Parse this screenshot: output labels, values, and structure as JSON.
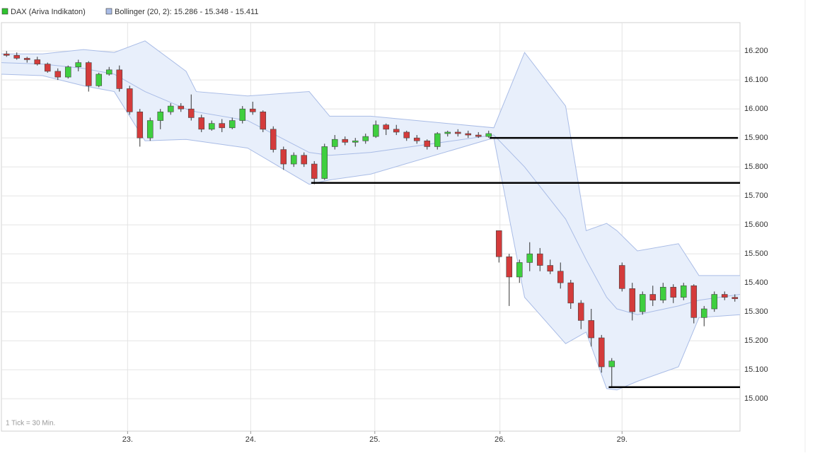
{
  "chart_data": {
    "type": "candlestick",
    "legend": [
      {
        "name": "DAX (Ariva Indikaton)",
        "color": "#2fc42f"
      },
      {
        "name": "Bollinger (20, 2): 15.286 - 15.348 - 15.411",
        "color": "#a9bce6"
      }
    ],
    "footnote": "1 Tick = 30 Min.",
    "up_color": "#3fcf3f",
    "down_color": "#d43b3b",
    "band_color": "#a9bce6",
    "band_fill": "#e8effb",
    "grid": true,
    "xlim": [
      0,
      72
    ],
    "xticks": [
      {
        "value": 12.3,
        "label": "23."
      },
      {
        "value": 24.3,
        "label": "24."
      },
      {
        "value": 36.4,
        "label": "25."
      },
      {
        "value": 48.6,
        "label": "26."
      },
      {
        "value": 60.5,
        "label": "29."
      }
    ],
    "ylim": [
      14888,
      16298
    ],
    "yticks": [
      {
        "value": 16200,
        "label": "16.200"
      },
      {
        "value": 16100,
        "label": "16.100"
      },
      {
        "value": 16000,
        "label": "16.000"
      },
      {
        "value": 15900,
        "label": "15.900"
      },
      {
        "value": 15800,
        "label": "15.800"
      },
      {
        "value": 15700,
        "label": "15.700"
      },
      {
        "value": 15600,
        "label": "15.600"
      },
      {
        "value": 15500,
        "label": "15.500"
      },
      {
        "value": 15400,
        "label": "15.400"
      },
      {
        "value": 15300,
        "label": "15.300"
      },
      {
        "value": 15200,
        "label": "15.200"
      },
      {
        "value": 15100,
        "label": "15.100"
      },
      {
        "value": 15000,
        "label": "15.000"
      }
    ],
    "open": [
      16190,
      16185,
      16175,
      16170,
      16155,
      16130,
      16110,
      16145,
      16160,
      16080,
      16120,
      16135,
      16070,
      15990,
      15900,
      15960,
      15990,
      16010,
      16000,
      15970,
      15930,
      15950,
      15935,
      15960,
      16000,
      15990,
      15930,
      15860,
      15810,
      15840,
      15810,
      15760,
      15870,
      15895,
      15885,
      15890,
      15905,
      15945,
      15930,
      15920,
      15900,
      15890,
      15870,
      15915,
      15920,
      15915,
      15910,
      15905,
      15580,
      15490,
      15420,
      15470,
      15500,
      15460,
      15440,
      15400,
      15330,
      15270,
      15210,
      15110,
      15460,
      15380,
      15300,
      15360,
      15340,
      15385,
      15350,
      15390,
      15280,
      15310,
      15360,
      15350
    ],
    "high": [
      16200,
      16195,
      16180,
      16180,
      16160,
      16140,
      16150,
      16170,
      16165,
      16125,
      16145,
      16150,
      16080,
      16000,
      15970,
      16000,
      16020,
      16020,
      16050,
      15980,
      15960,
      15965,
      15970,
      16010,
      16025,
      15995,
      15940,
      15870,
      15850,
      15850,
      15820,
      15880,
      15910,
      15905,
      15900,
      15915,
      15960,
      15950,
      15945,
      15925,
      15910,
      15895,
      15920,
      15925,
      15930,
      15925,
      15920,
      15925,
      15580,
      15500,
      15480,
      15540,
      15520,
      15480,
      15470,
      15410,
      15340,
      15310,
      15220,
      15140,
      15470,
      15400,
      15370,
      15390,
      15400,
      15395,
      15400,
      15395,
      15320,
      15370,
      15370,
      15360
    ],
    "low": [
      16180,
      16170,
      16160,
      16150,
      16125,
      16100,
      16105,
      16130,
      16060,
      16075,
      16115,
      16060,
      15980,
      15870,
      15890,
      15930,
      15980,
      15990,
      15960,
      15920,
      15925,
      15920,
      15930,
      15950,
      15980,
      15920,
      15850,
      15790,
      15800,
      15800,
      15740,
      15755,
      15860,
      15875,
      15870,
      15880,
      15900,
      15910,
      15910,
      15890,
      15880,
      15860,
      15860,
      15905,
      15905,
      15900,
      15900,
      15900,
      15470,
      15320,
      15400,
      15440,
      15440,
      15430,
      15380,
      15310,
      15240,
      15180,
      15090,
      15040,
      15370,
      15270,
      15290,
      15320,
      15330,
      15330,
      15340,
      15260,
      15250,
      15300,
      15340,
      15335
    ],
    "close": [
      16185,
      16175,
      16170,
      16155,
      16130,
      16110,
      16145,
      16160,
      16080,
      16120,
      16135,
      16070,
      15990,
      15900,
      15960,
      15990,
      16010,
      16000,
      15970,
      15930,
      15950,
      15935,
      15960,
      16000,
      15990,
      15930,
      15860,
      15810,
      15840,
      15810,
      15760,
      15870,
      15895,
      15885,
      15890,
      15905,
      15945,
      15930,
      15920,
      15900,
      15890,
      15870,
      15915,
      15920,
      15915,
      15910,
      15905,
      15915,
      15490,
      15420,
      15470,
      15500,
      15460,
      15440,
      15400,
      15330,
      15270,
      15210,
      15110,
      15130,
      15380,
      15300,
      15360,
      15340,
      15385,
      15350,
      15390,
      15280,
      15310,
      15360,
      15350,
      15345
    ],
    "bollinger": {
      "x": [
        0,
        4,
        8,
        11,
        14,
        18,
        19,
        24,
        30,
        32,
        36,
        48,
        51,
        55,
        57,
        59,
        60,
        62,
        66,
        68,
        72
      ],
      "upper": [
        16190,
        16190,
        16205,
        16195,
        16235,
        16130,
        16060,
        16045,
        16060,
        15975,
        15975,
        15935,
        16195,
        16010,
        15580,
        15605,
        15580,
        15510,
        15535,
        15425,
        15425
      ],
      "middle": [
        16160,
        16155,
        16140,
        16120,
        16060,
        16000,
        15990,
        15960,
        15850,
        15840,
        15850,
        15910,
        15800,
        15620,
        15480,
        15350,
        15310,
        15290,
        15320,
        15340,
        15360
      ],
      "lower": [
        16120,
        16115,
        16080,
        16060,
        15890,
        15895,
        15890,
        15865,
        15740,
        15755,
        15775,
        15900,
        15350,
        15190,
        15230,
        15035,
        15030,
        15060,
        15110,
        15280,
        15290
      ]
    },
    "levels": [
      {
        "value": 15900,
        "x": [
          47.6,
          71.8
        ]
      },
      {
        "value": 15745,
        "x": [
          30.2,
          72
        ]
      },
      {
        "value": 15040,
        "x": [
          59.2,
          72
        ]
      }
    ]
  }
}
